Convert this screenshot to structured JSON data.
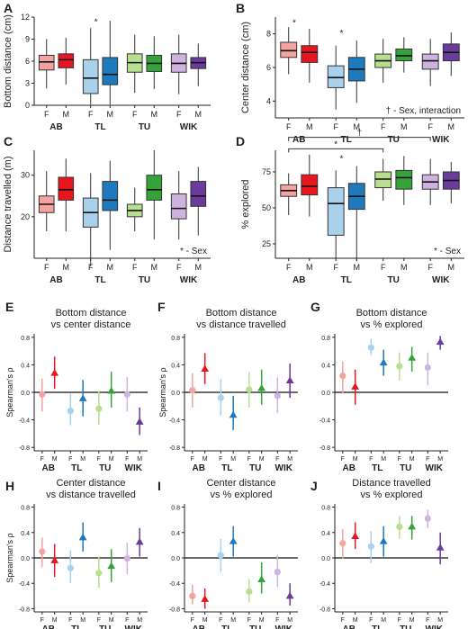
{
  "colors": {
    "AB": {
      "F": "#f4a3a0",
      "M": "#e8151f"
    },
    "TL": {
      "F": "#a9d1ec",
      "M": "#1e79bd"
    },
    "TU": {
      "F": "#b8df8f",
      "M": "#34a43a"
    },
    "WIK": {
      "F": "#cdb3dd",
      "M": "#6a3a9c"
    }
  },
  "chart_data": [
    {
      "id": "A",
      "letter": "A",
      "type": "box",
      "ylabel": "Bottom distance (cm)",
      "ylim": [
        0,
        12
      ],
      "yticks": [
        0,
        3,
        6,
        9,
        12
      ],
      "yticklabels": [
        "0",
        "3",
        "6",
        "9",
        "12"
      ],
      "groups": [
        "AB",
        "TL",
        "TU",
        "WIK"
      ],
      "sexes": [
        "F",
        "M"
      ],
      "annotations": [
        {
          "text": "*",
          "group": 1,
          "y": 11.7
        }
      ],
      "footnote": "",
      "boxes": [
        {
          "g": "AB",
          "s": "F",
          "wl": 2.3,
          "q1": 4.8,
          "med": 5.9,
          "q3": 6.8,
          "wh": 9.0
        },
        {
          "g": "AB",
          "s": "M",
          "wl": 2.8,
          "q1": 5.1,
          "med": 6.2,
          "q3": 7.0,
          "wh": 9.2
        },
        {
          "g": "TL",
          "s": "F",
          "wl": 0.1,
          "q1": 1.6,
          "med": 3.7,
          "q3": 6.2,
          "wh": 10.5
        },
        {
          "g": "TL",
          "s": "M",
          "wl": 0.1,
          "q1": 2.8,
          "med": 4.2,
          "q3": 6.5,
          "wh": 11.5
        },
        {
          "g": "TU",
          "s": "F",
          "wl": 1.7,
          "q1": 4.5,
          "med": 5.8,
          "q3": 7.0,
          "wh": 9.6
        },
        {
          "g": "TU",
          "s": "M",
          "wl": 2.2,
          "q1": 4.6,
          "med": 5.7,
          "q3": 6.8,
          "wh": 9.4
        },
        {
          "g": "WIK",
          "s": "F",
          "wl": 1.5,
          "q1": 4.5,
          "med": 5.7,
          "q3": 7.0,
          "wh": 9.6
        },
        {
          "g": "WIK",
          "s": "M",
          "wl": 2.6,
          "q1": 5.0,
          "med": 5.8,
          "q3": 6.5,
          "wh": 8.4
        }
      ]
    },
    {
      "id": "B",
      "letter": "B",
      "type": "box",
      "ylabel": "Center distance (cm)",
      "ylim": [
        3,
        9
      ],
      "yticks": [
        4,
        6,
        8
      ],
      "yticklabels": [
        "4",
        "6",
        "8"
      ],
      "groups": [
        "AB",
        "TL",
        "TU",
        "WIK"
      ],
      "sexes": [
        "F",
        "M"
      ],
      "annotations": [
        {
          "text": "*",
          "group": 0,
          "y": 8.8
        },
        {
          "text": "*",
          "group": 1,
          "y": 8.2
        }
      ],
      "footnote": "† - Sex, interaction",
      "boxes": [
        {
          "g": "AB",
          "s": "F",
          "wl": 5.6,
          "q1": 6.6,
          "med": 7.0,
          "q3": 7.5,
          "wh": 8.4
        },
        {
          "g": "AB",
          "s": "M",
          "wl": 5.1,
          "q1": 6.3,
          "med": 6.9,
          "q3": 7.3,
          "wh": 8.3
        },
        {
          "g": "TL",
          "s": "F",
          "wl": 3.5,
          "q1": 4.8,
          "med": 5.4,
          "q3": 6.1,
          "wh": 7.3
        },
        {
          "g": "TL",
          "s": "M",
          "wl": 3.9,
          "q1": 5.2,
          "med": 5.9,
          "q3": 6.6,
          "wh": 7.6
        },
        {
          "g": "TU",
          "s": "F",
          "wl": 5.1,
          "q1": 6.0,
          "med": 6.4,
          "q3": 6.8,
          "wh": 7.7
        },
        {
          "g": "TU",
          "s": "M",
          "wl": 5.7,
          "q1": 6.4,
          "med": 6.7,
          "q3": 7.1,
          "wh": 7.8
        },
        {
          "g": "WIK",
          "s": "F",
          "wl": 4.9,
          "q1": 5.9,
          "med": 6.4,
          "q3": 6.8,
          "wh": 7.7
        },
        {
          "g": "WIK",
          "s": "M",
          "wl": 5.5,
          "q1": 6.4,
          "med": 6.9,
          "q3": 7.4,
          "wh": 8.1
        }
      ]
    },
    {
      "id": "C",
      "letter": "C",
      "type": "box",
      "ylabel": "Distance travelled (m)",
      "ylim": [
        10,
        36
      ],
      "yticks": [
        20,
        30
      ],
      "yticklabels": [
        "20",
        "30"
      ],
      "groups": [
        "AB",
        "TL",
        "TU",
        "WIK"
      ],
      "sexes": [
        "F",
        "M"
      ],
      "annotations": [],
      "footnote": "* - Sex",
      "boxes": [
        {
          "g": "AB",
          "s": "F",
          "wl": 16.5,
          "q1": 21.0,
          "med": 23.0,
          "q3": 25.0,
          "wh": 31.0
        },
        {
          "g": "AB",
          "s": "M",
          "wl": 16.5,
          "q1": 24.0,
          "med": 26.5,
          "q3": 29.5,
          "wh": 34.0
        },
        {
          "g": "TL",
          "s": "F",
          "wl": 8.0,
          "q1": 17.5,
          "med": 21.0,
          "q3": 24.5,
          "wh": 30.5
        },
        {
          "g": "TL",
          "s": "M",
          "wl": 12.0,
          "q1": 21.5,
          "med": 24.0,
          "q3": 28.5,
          "wh": 33.5
        },
        {
          "g": "TU",
          "s": "F",
          "wl": 16.5,
          "q1": 20.0,
          "med": 21.5,
          "q3": 23.0,
          "wh": 27.0
        },
        {
          "g": "TU",
          "s": "M",
          "wl": 14.5,
          "q1": 24.0,
          "med": 26.5,
          "q3": 30.0,
          "wh": 36.0
        },
        {
          "g": "WIK",
          "s": "F",
          "wl": 14.5,
          "q1": 19.5,
          "med": 22.0,
          "q3": 25.5,
          "wh": 31.0
        },
        {
          "g": "WIK",
          "s": "M",
          "wl": 15.5,
          "q1": 22.5,
          "med": 25.0,
          "q3": 28.5,
          "wh": 32.0
        }
      ]
    },
    {
      "id": "D",
      "letter": "D",
      "type": "box",
      "ylabel": "% explored",
      "ylim": [
        15,
        90
      ],
      "yticks": [
        25,
        50,
        75
      ],
      "yticklabels": [
        "25",
        "50",
        "75"
      ],
      "groups": [
        "AB",
        "TL",
        "TU",
        "WIK"
      ],
      "sexes": [
        "F",
        "M"
      ],
      "annotations": [
        {
          "text": "*",
          "group": 1,
          "y": 86
        }
      ],
      "brackets": [
        {
          "from": 0,
          "to": 3,
          "y": 99,
          "label": "†"
        },
        {
          "from": 0,
          "to": 2,
          "y": 91,
          "label": "*"
        }
      ],
      "footnote": "* - Sex",
      "boxes": [
        {
          "g": "AB",
          "s": "F",
          "wl": 45,
          "q1": 58,
          "med": 62,
          "q3": 66,
          "wh": 74
        },
        {
          "g": "AB",
          "s": "M",
          "wl": 44,
          "q1": 59,
          "med": 65,
          "q3": 73,
          "wh": 87
        },
        {
          "g": "TL",
          "s": "F",
          "wl": 15,
          "q1": 31,
          "med": 53,
          "q3": 64,
          "wh": 76
        },
        {
          "g": "TL",
          "s": "M",
          "wl": 13,
          "q1": 49,
          "med": 58,
          "q3": 67,
          "wh": 79
        },
        {
          "g": "TU",
          "s": "F",
          "wl": 55,
          "q1": 64,
          "med": 70,
          "q3": 75,
          "wh": 84
        },
        {
          "g": "TU",
          "s": "M",
          "wl": 52,
          "q1": 63,
          "med": 71,
          "q3": 76,
          "wh": 86
        },
        {
          "g": "WIK",
          "s": "F",
          "wl": 52,
          "q1": 63,
          "med": 68,
          "q3": 73,
          "wh": 84
        },
        {
          "g": "WIK",
          "s": "M",
          "wl": 53,
          "q1": 63,
          "med": 69,
          "q3": 75,
          "wh": 82
        }
      ]
    },
    {
      "id": "E",
      "letter": "E",
      "type": "scatter",
      "title": [
        "Bottom distance",
        "vs center distance"
      ],
      "ylabel": "Spearman's ρ",
      "ylim": [
        -0.85,
        0.85
      ],
      "yticks": [
        -0.8,
        -0.4,
        0.0,
        0.4,
        0.8
      ],
      "yticklabels": [
        "-0.8",
        "-0.4",
        "0.0",
        "0.4",
        "0.8"
      ],
      "groups": [
        "AB",
        "TL",
        "TU",
        "WIK"
      ],
      "sexes": [
        "F",
        "M"
      ],
      "points": [
        {
          "g": "AB",
          "s": "F",
          "rho": -0.03,
          "lo": -0.28,
          "hi": 0.2
        },
        {
          "g": "AB",
          "s": "M",
          "rho": 0.28,
          "lo": 0.05,
          "hi": 0.52
        },
        {
          "g": "TL",
          "s": "F",
          "rho": -0.27,
          "lo": -0.48,
          "hi": -0.02
        },
        {
          "g": "TL",
          "s": "M",
          "rho": -0.09,
          "lo": -0.35,
          "hi": 0.18
        },
        {
          "g": "TU",
          "s": "F",
          "rho": -0.24,
          "lo": -0.47,
          "hi": 0.02
        },
        {
          "g": "TU",
          "s": "M",
          "rho": 0.02,
          "lo": -0.22,
          "hi": 0.3
        },
        {
          "g": "WIK",
          "s": "F",
          "rho": -0.03,
          "lo": -0.28,
          "hi": 0.22
        },
        {
          "g": "WIK",
          "s": "M",
          "rho": -0.43,
          "lo": -0.62,
          "hi": -0.22
        }
      ]
    },
    {
      "id": "F",
      "letter": "F",
      "type": "scatter",
      "title": [
        "Bottom distance",
        "vs distance travelled"
      ],
      "ylabel": "Spearman's ρ",
      "ylim": [
        -0.85,
        0.85
      ],
      "yticks": [
        -0.8,
        -0.4,
        0.0,
        0.4,
        0.8
      ],
      "yticklabels": [
        "-0.8",
        "-0.4",
        "0.0",
        "0.4",
        "0.8"
      ],
      "groups": [
        "AB",
        "TL",
        "TU",
        "WIK"
      ],
      "sexes": [
        "F",
        "M"
      ],
      "points": [
        {
          "g": "AB",
          "s": "F",
          "rho": 0.03,
          "lo": -0.22,
          "hi": 0.28
        },
        {
          "g": "AB",
          "s": "M",
          "rho": 0.34,
          "lo": 0.12,
          "hi": 0.57
        },
        {
          "g": "TL",
          "s": "F",
          "rho": -0.08,
          "lo": -0.34,
          "hi": 0.2
        },
        {
          "g": "TL",
          "s": "M",
          "rho": -0.33,
          "lo": -0.55,
          "hi": -0.05
        },
        {
          "g": "TU",
          "s": "F",
          "rho": 0.04,
          "lo": -0.22,
          "hi": 0.3
        },
        {
          "g": "TU",
          "s": "M",
          "rho": 0.06,
          "lo": -0.18,
          "hi": 0.33
        },
        {
          "g": "WIK",
          "s": "F",
          "rho": -0.05,
          "lo": -0.3,
          "hi": 0.22
        },
        {
          "g": "WIK",
          "s": "M",
          "rho": 0.17,
          "lo": -0.08,
          "hi": 0.42
        }
      ]
    },
    {
      "id": "G",
      "letter": "G",
      "type": "scatter",
      "title": [
        "Bottom distance",
        "vs % explored"
      ],
      "ylabel": "",
      "ylim": [
        -0.85,
        0.85
      ],
      "yticks": [
        -0.8,
        -0.4,
        0.0,
        0.4,
        0.8
      ],
      "yticklabels": [
        "-0.8",
        "-0.4",
        "0.0",
        "0.4",
        "0.8"
      ],
      "groups": [
        "AB",
        "TL",
        "TU",
        "WIK"
      ],
      "sexes": [
        "F",
        "M"
      ],
      "points": [
        {
          "g": "AB",
          "s": "F",
          "rho": 0.24,
          "lo": -0.02,
          "hi": 0.45
        },
        {
          "g": "AB",
          "s": "M",
          "rho": 0.08,
          "lo": -0.18,
          "hi": 0.33
        },
        {
          "g": "TL",
          "s": "F",
          "rho": 0.65,
          "lo": 0.54,
          "hi": 0.78
        },
        {
          "g": "TL",
          "s": "M",
          "rho": 0.43,
          "lo": 0.24,
          "hi": 0.62
        },
        {
          "g": "TU",
          "s": "F",
          "rho": 0.38,
          "lo": 0.17,
          "hi": 0.58
        },
        {
          "g": "TU",
          "s": "M",
          "rho": 0.5,
          "lo": 0.3,
          "hi": 0.66
        },
        {
          "g": "WIK",
          "s": "F",
          "rho": 0.36,
          "lo": 0.1,
          "hi": 0.58
        },
        {
          "g": "WIK",
          "s": "M",
          "rho": 0.73,
          "lo": 0.62,
          "hi": 0.82
        }
      ]
    },
    {
      "id": "H",
      "letter": "H",
      "type": "scatter",
      "title": [
        "Center distance",
        "vs distance travelled"
      ],
      "ylabel": "Spearman's ρ",
      "ylim": [
        -0.85,
        0.85
      ],
      "yticks": [
        -0.8,
        -0.4,
        0.0,
        0.4,
        0.8
      ],
      "yticklabels": [
        "-0.8",
        "-0.4",
        "0.0",
        "0.4",
        "0.8"
      ],
      "groups": [
        "AB",
        "TL",
        "TU",
        "WIK"
      ],
      "sexes": [
        "F",
        "M"
      ],
      "points": [
        {
          "g": "AB",
          "s": "F",
          "rho": 0.1,
          "lo": -0.14,
          "hi": 0.32
        },
        {
          "g": "AB",
          "s": "M",
          "rho": -0.04,
          "lo": -0.3,
          "hi": 0.22
        },
        {
          "g": "TL",
          "s": "F",
          "rho": -0.16,
          "lo": -0.4,
          "hi": 0.12
        },
        {
          "g": "TL",
          "s": "M",
          "rho": 0.32,
          "lo": 0.1,
          "hi": 0.56
        },
        {
          "g": "TU",
          "s": "F",
          "rho": -0.24,
          "lo": -0.47,
          "hi": 0.02
        },
        {
          "g": "TU",
          "s": "M",
          "rho": -0.13,
          "lo": -0.38,
          "hi": 0.14
        },
        {
          "g": "WIK",
          "s": "F",
          "rho": -0.01,
          "lo": -0.26,
          "hi": 0.24
        },
        {
          "g": "WIK",
          "s": "M",
          "rho": 0.25,
          "lo": 0.02,
          "hi": 0.47
        }
      ]
    },
    {
      "id": "I",
      "letter": "I",
      "type": "scatter",
      "title": [
        "Center distance",
        "vs % explored"
      ],
      "ylabel": "",
      "ylim": [
        -0.85,
        0.85
      ],
      "yticks": [
        -0.8,
        -0.4,
        0.0,
        0.4,
        0.8
      ],
      "yticklabels": [
        "-0.8",
        "-0.4",
        "0.0",
        "0.4",
        "0.8"
      ],
      "groups": [
        "AB",
        "TL",
        "TU",
        "WIK"
      ],
      "sexes": [
        "F",
        "M"
      ],
      "points": [
        {
          "g": "AB",
          "s": "F",
          "rho": -0.6,
          "lo": -0.73,
          "hi": -0.42
        },
        {
          "g": "AB",
          "s": "M",
          "rho": -0.65,
          "lo": -0.8,
          "hi": -0.48
        },
        {
          "g": "TL",
          "s": "F",
          "rho": 0.04,
          "lo": -0.22,
          "hi": 0.3
        },
        {
          "g": "TL",
          "s": "M",
          "rho": 0.26,
          "lo": 0.02,
          "hi": 0.5
        },
        {
          "g": "TU",
          "s": "F",
          "rho": -0.53,
          "lo": -0.7,
          "hi": -0.33
        },
        {
          "g": "TU",
          "s": "M",
          "rho": -0.34,
          "lo": -0.56,
          "hi": -0.07
        },
        {
          "g": "WIK",
          "s": "F",
          "rho": -0.22,
          "lo": -0.46,
          "hi": 0.05
        },
        {
          "g": "WIK",
          "s": "M",
          "rho": -0.6,
          "lo": -0.75,
          "hi": -0.4
        }
      ]
    },
    {
      "id": "J",
      "letter": "J",
      "type": "scatter",
      "title": [
        "Distance travelled",
        "vs % explored"
      ],
      "ylabel": "",
      "ylim": [
        -0.85,
        0.85
      ],
      "yticks": [
        -0.8,
        -0.4,
        0.0,
        0.4,
        0.8
      ],
      "yticklabels": [
        "-0.8",
        "-0.4",
        "0.0",
        "0.4",
        "0.8"
      ],
      "groups": [
        "AB",
        "TL",
        "TU",
        "WIK"
      ],
      "sexes": [
        "F",
        "M"
      ],
      "points": [
        {
          "g": "AB",
          "s": "F",
          "rho": 0.23,
          "lo": -0.01,
          "hi": 0.45
        },
        {
          "g": "AB",
          "s": "M",
          "rho": 0.34,
          "lo": 0.14,
          "hi": 0.56
        },
        {
          "g": "TL",
          "s": "F",
          "rho": 0.18,
          "lo": -0.08,
          "hi": 0.42
        },
        {
          "g": "TL",
          "s": "M",
          "rho": 0.26,
          "lo": 0.02,
          "hi": 0.5
        },
        {
          "g": "TU",
          "s": "F",
          "rho": 0.49,
          "lo": 0.3,
          "hi": 0.66
        },
        {
          "g": "TU",
          "s": "M",
          "rho": 0.49,
          "lo": 0.29,
          "hi": 0.66
        },
        {
          "g": "WIK",
          "s": "F",
          "rho": 0.62,
          "lo": 0.47,
          "hi": 0.76
        },
        {
          "g": "WIK",
          "s": "M",
          "rho": 0.16,
          "lo": -0.1,
          "hi": 0.4
        }
      ]
    }
  ]
}
